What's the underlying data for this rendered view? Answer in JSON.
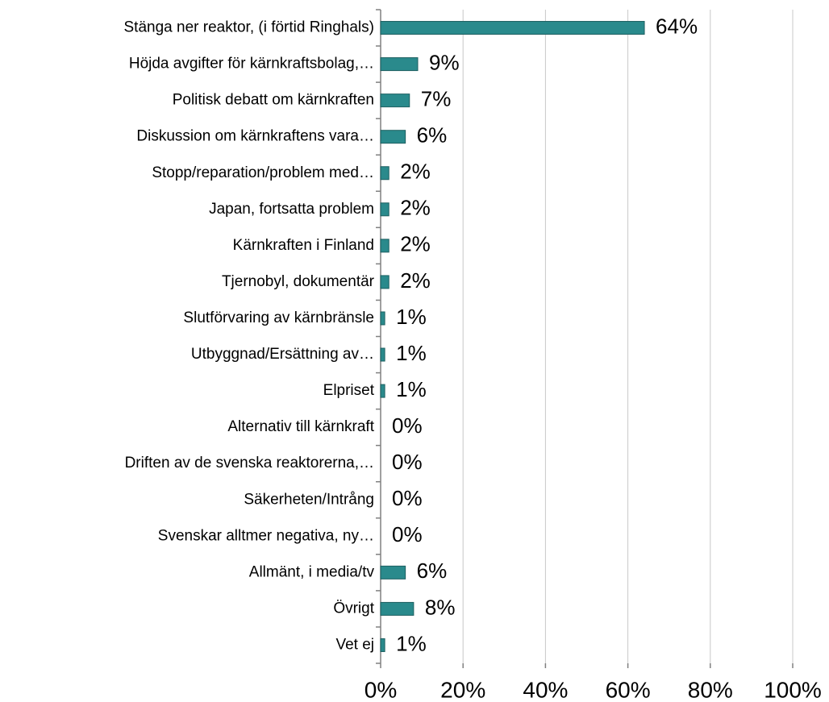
{
  "chart_data": {
    "type": "bar",
    "orientation": "horizontal",
    "categories": [
      "Stänga ner reaktor, (i förtid Ringhals)",
      "Höjda avgifter för kärnkraftsbolag,…",
      "Politisk debatt om kärnkraften",
      "Diskussion om kärnkraftens vara…",
      "Stopp/reparation/problem med…",
      "Japan, fortsatta problem",
      "Kärnkraften i Finland",
      "Tjernobyl, dokumentär",
      "Slutförvaring av kärnbränsle",
      "Utbyggnad/Ersättning av…",
      "Elpriset",
      "Alternativ till kärnkraft",
      "Driften av de svenska reaktorerna,…",
      "Säkerheten/Intrång",
      "Svenskar alltmer negativa, ny…",
      "Allmänt, i media/tv",
      "Övrigt",
      "Vet ej"
    ],
    "values": [
      64,
      9,
      7,
      6,
      2,
      2,
      2,
      2,
      1,
      1,
      1,
      0,
      0,
      0,
      0,
      6,
      8,
      1
    ],
    "value_labels": [
      "64%",
      "9%",
      "7%",
      "6%",
      "2%",
      "2%",
      "2%",
      "2%",
      "1%",
      "1%",
      "1%",
      "0%",
      "0%",
      "0%",
      "0%",
      "6%",
      "8%",
      "1%"
    ],
    "color": "#2a8a8c",
    "xlim": [
      0,
      100
    ],
    "xticks": [
      {
        "value": 0,
        "label": "0%"
      },
      {
        "value": 20,
        "label": "20%"
      },
      {
        "value": 40,
        "label": "40%"
      },
      {
        "value": 60,
        "label": "60%"
      },
      {
        "value": 80,
        "label": "80%"
      },
      {
        "value": 100,
        "label": "100%"
      }
    ],
    "grid": true
  }
}
